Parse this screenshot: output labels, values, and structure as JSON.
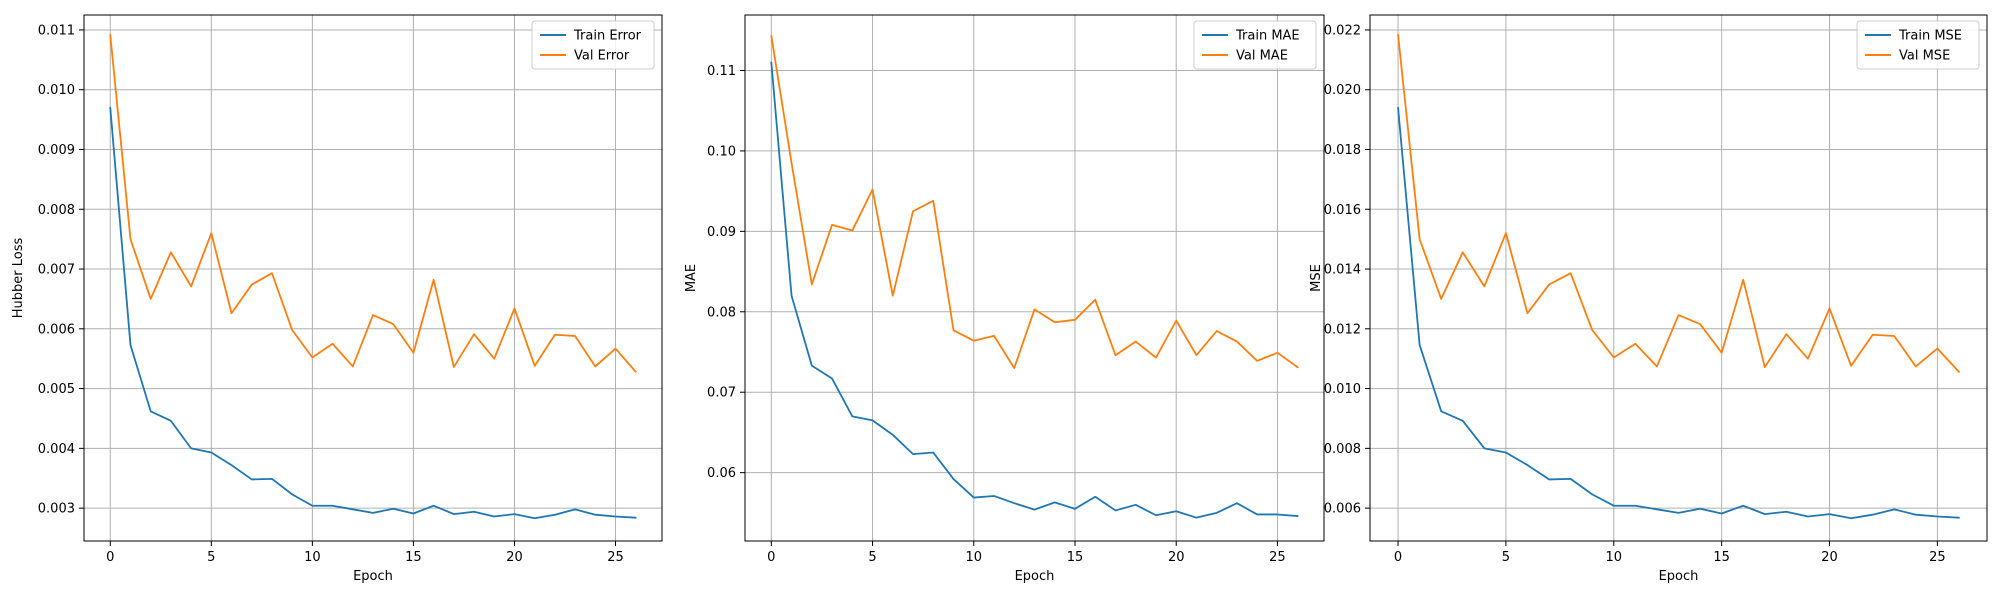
{
  "chart_data": [
    {
      "type": "line",
      "xlabel": "Epoch",
      "ylabel": "Hubber Loss",
      "xlim": [
        -1.3,
        27.3
      ],
      "ylim": [
        0.00245,
        0.01125
      ],
      "xticks": [
        0,
        5,
        10,
        15,
        20,
        25
      ],
      "yticks": [
        0.003,
        0.004,
        0.005,
        0.006,
        0.007,
        0.008,
        0.009,
        0.01,
        0.011
      ],
      "ytick_labels": [
        "0.003",
        "0.004",
        "0.005",
        "0.006",
        "0.007",
        "0.008",
        "0.009",
        "0.010",
        "0.011"
      ],
      "grid": true,
      "legend": "top-right",
      "x": [
        0,
        1,
        2,
        3,
        4,
        5,
        6,
        7,
        8,
        9,
        10,
        11,
        12,
        13,
        14,
        15,
        16,
        17,
        18,
        19,
        20,
        21,
        22,
        23,
        24,
        25,
        26
      ],
      "series": [
        {
          "name": "Train Error",
          "color": "#1f77b4",
          "values": [
            0.0097,
            0.00573,
            0.00462,
            0.00446,
            0.004,
            0.00393,
            0.00372,
            0.00348,
            0.00349,
            0.00323,
            0.00304,
            0.00304,
            0.00298,
            0.00292,
            0.00299,
            0.00291,
            0.00304,
            0.0029,
            0.00294,
            0.00286,
            0.0029,
            0.00283,
            0.00289,
            0.00298,
            0.00289,
            0.00286,
            0.00284
          ]
        },
        {
          "name": "Val Error",
          "color": "#ff7f0e",
          "values": [
            0.01092,
            0.0075,
            0.0065,
            0.00728,
            0.00671,
            0.0076,
            0.00626,
            0.00674,
            0.00693,
            0.00598,
            0.00552,
            0.00575,
            0.00537,
            0.00623,
            0.00608,
            0.0056,
            0.00682,
            0.00536,
            0.00591,
            0.0055,
            0.00634,
            0.00538,
            0.0059,
            0.00588,
            0.00537,
            0.00567,
            0.00528
          ]
        }
      ]
    },
    {
      "type": "line",
      "xlabel": "Epoch",
      "ylabel": "MAE",
      "xlim": [
        -1.3,
        27.3
      ],
      "ylim": [
        0.0515,
        0.1169
      ],
      "xticks": [
        0,
        5,
        10,
        15,
        20,
        25
      ],
      "yticks": [
        0.06,
        0.07,
        0.08,
        0.09,
        0.1,
        0.11
      ],
      "ytick_labels": [
        "0.06",
        "0.07",
        "0.08",
        "0.09",
        "0.10",
        "0.11"
      ],
      "grid": true,
      "legend": "top-right",
      "x": [
        0,
        1,
        2,
        3,
        4,
        5,
        6,
        7,
        8,
        9,
        10,
        11,
        12,
        13,
        14,
        15,
        16,
        17,
        18,
        19,
        20,
        21,
        22,
        23,
        24,
        25,
        26
      ],
      "series": [
        {
          "name": "Train MAE",
          "color": "#1f77b4",
          "values": [
            0.111,
            0.082,
            0.0733,
            0.0717,
            0.067,
            0.0665,
            0.0647,
            0.0623,
            0.0625,
            0.0592,
            0.0569,
            0.0571,
            0.0562,
            0.0554,
            0.0563,
            0.0555,
            0.057,
            0.0553,
            0.056,
            0.0547,
            0.0552,
            0.0544,
            0.055,
            0.0562,
            0.0548,
            0.0548,
            0.0546
          ]
        },
        {
          "name": "Val MAE",
          "color": "#ff7f0e",
          "values": [
            0.1143,
            0.0985,
            0.0834,
            0.0908,
            0.0901,
            0.0952,
            0.082,
            0.0925,
            0.0938,
            0.0777,
            0.0764,
            0.077,
            0.073,
            0.0803,
            0.0787,
            0.079,
            0.0815,
            0.0746,
            0.0763,
            0.0743,
            0.0789,
            0.0746,
            0.0776,
            0.0763,
            0.0739,
            0.0749,
            0.0731
          ]
        }
      ]
    },
    {
      "type": "line",
      "xlabel": "Epoch",
      "ylabel": "MSE",
      "xlim": [
        -1.3,
        27.3
      ],
      "ylim": [
        0.0049,
        0.0225
      ],
      "xticks": [
        0,
        5,
        10,
        15,
        20,
        25
      ],
      "yticks": [
        0.006,
        0.008,
        0.01,
        0.012,
        0.014,
        0.016,
        0.018,
        0.02,
        0.022
      ],
      "ytick_labels": [
        "0.006",
        "0.008",
        "0.010",
        "0.012",
        "0.014",
        "0.016",
        "0.018",
        "0.020",
        "0.022"
      ],
      "grid": true,
      "legend": "top-right",
      "x": [
        0,
        1,
        2,
        3,
        4,
        5,
        6,
        7,
        8,
        9,
        10,
        11,
        12,
        13,
        14,
        15,
        16,
        17,
        18,
        19,
        20,
        21,
        22,
        23,
        24,
        25,
        26
      ],
      "series": [
        {
          "name": "Train MSE",
          "color": "#1f77b4",
          "values": [
            0.0194,
            0.01146,
            0.00924,
            0.00892,
            0.008,
            0.00786,
            0.00744,
            0.00696,
            0.00698,
            0.00646,
            0.00608,
            0.00608,
            0.00596,
            0.00584,
            0.00598,
            0.00582,
            0.00608,
            0.0058,
            0.00588,
            0.00572,
            0.0058,
            0.00566,
            0.00578,
            0.00596,
            0.00578,
            0.00572,
            0.00568
          ]
        },
        {
          "name": "Val MSE",
          "color": "#ff7f0e",
          "values": [
            0.02184,
            0.015,
            0.013,
            0.01456,
            0.01342,
            0.0152,
            0.01252,
            0.01348,
            0.01386,
            0.01196,
            0.01104,
            0.0115,
            0.01074,
            0.01246,
            0.01216,
            0.0112,
            0.01364,
            0.01072,
            0.01182,
            0.011,
            0.01268,
            0.01076,
            0.0118,
            0.01176,
            0.01074,
            0.01134,
            0.01056
          ]
        }
      ]
    }
  ]
}
